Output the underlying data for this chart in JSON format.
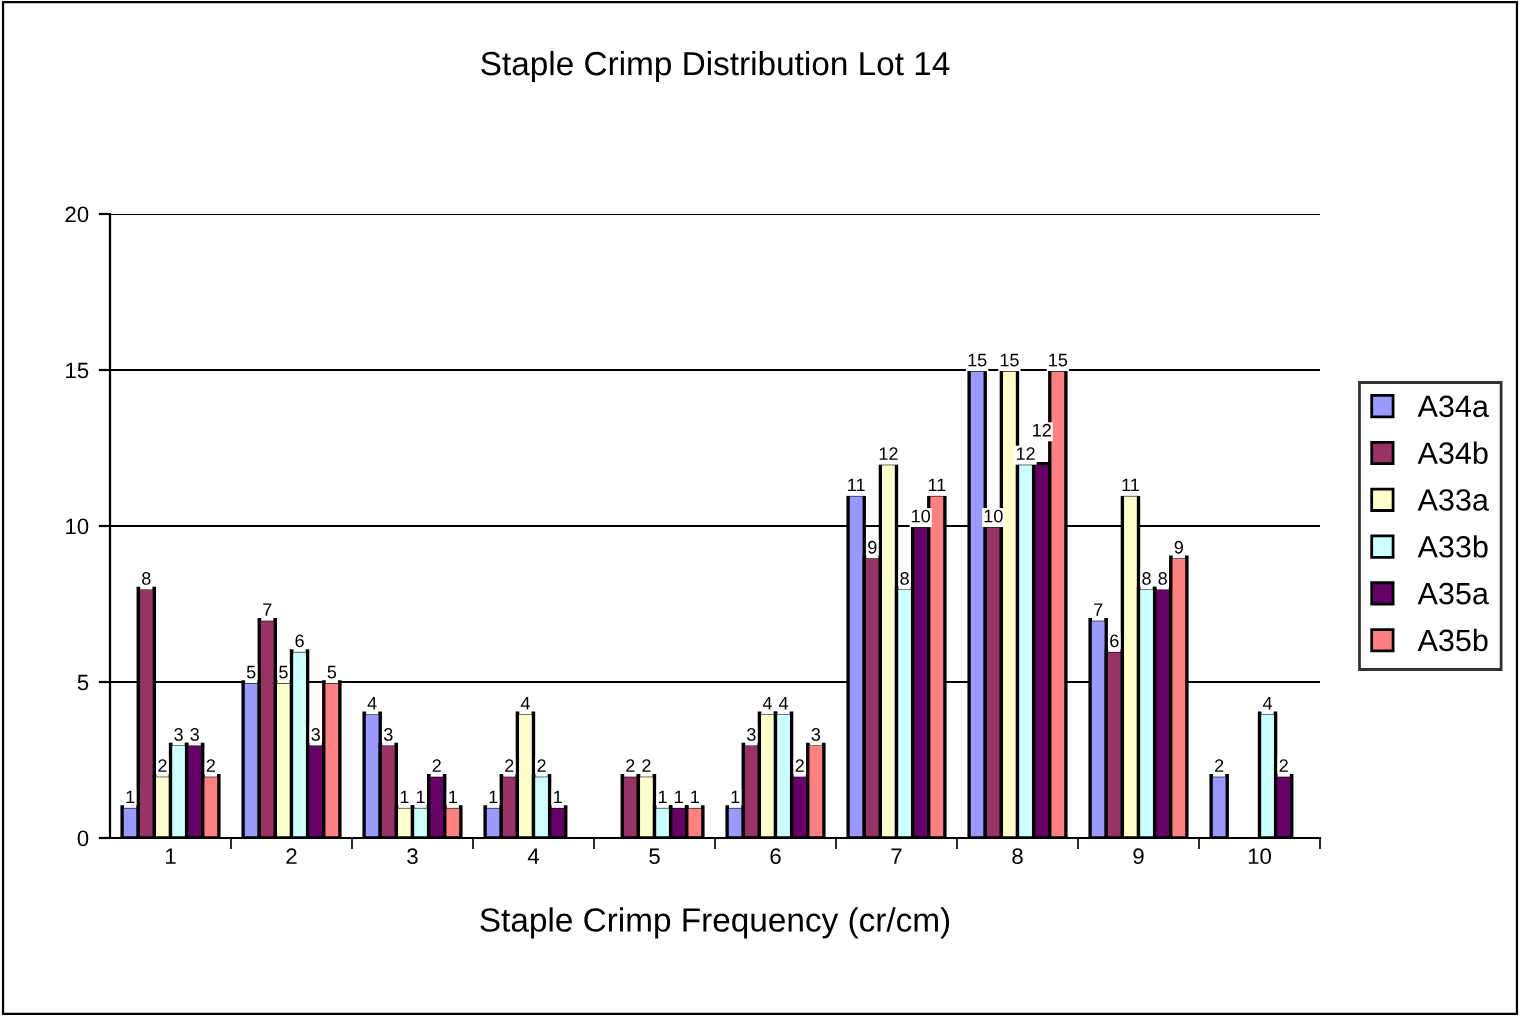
{
  "chart_data": {
    "type": "bar",
    "title": "Staple Crimp Distribution Lot 14",
    "xlabel": "Staple Crimp Frequency (cr/cm)",
    "categories": [
      "1",
      "2",
      "3",
      "4",
      "5",
      "6",
      "7",
      "8",
      "9",
      "10"
    ],
    "series": [
      {
        "name": "A34a",
        "color": "#9999ff",
        "values": [
          1,
          5,
          4,
          1,
          0,
          1,
          11,
          15,
          7,
          2
        ],
        "value_labels": [
          "1",
          "5",
          "4",
          "1",
          null,
          "1",
          "11",
          "15",
          "7",
          "2"
        ]
      },
      {
        "name": "A34b",
        "color": "#993366",
        "values": [
          8,
          7,
          3,
          2,
          2,
          3,
          9,
          10,
          6,
          0
        ],
        "value_labels": [
          "8",
          "7",
          "3",
          "2",
          "2",
          "3",
          "9",
          "10",
          "6",
          null
        ]
      },
      {
        "name": "A33a",
        "color": "#ffffcc",
        "values": [
          2,
          5,
          1,
          4,
          2,
          4,
          12,
          15,
          11,
          0
        ],
        "value_labels": [
          "2",
          "5",
          "1",
          "4",
          "2",
          "4",
          "12",
          "15",
          "11",
          null
        ]
      },
      {
        "name": "A33b",
        "color": "#ccffff",
        "values": [
          3,
          6,
          1,
          2,
          1,
          4,
          8,
          12,
          8,
          4
        ],
        "value_labels": [
          "3",
          "6",
          "1",
          "2",
          "1",
          "4",
          "8",
          "12",
          "8",
          "4"
        ]
      },
      {
        "name": "A35a",
        "color": "#660066",
        "values": [
          3,
          3,
          2,
          1,
          1,
          2,
          10,
          12,
          8,
          2
        ],
        "value_labels": [
          "3",
          "3",
          "2",
          "1",
          "1",
          "2",
          "10",
          "12",
          "8",
          "2"
        ]
      },
      {
        "name": "A35b",
        "color": "#ff8080",
        "values": [
          2,
          5,
          1,
          0,
          1,
          3,
          11,
          15,
          9,
          0
        ],
        "value_labels": [
          "2",
          "5",
          "1",
          null,
          "1",
          "3",
          "11",
          "15",
          "9",
          null
        ]
      }
    ],
    "ylim": [
      0,
      20
    ],
    "yticks": [
      0,
      5,
      10,
      15,
      20
    ],
    "grid": "y",
    "legend": "right"
  }
}
